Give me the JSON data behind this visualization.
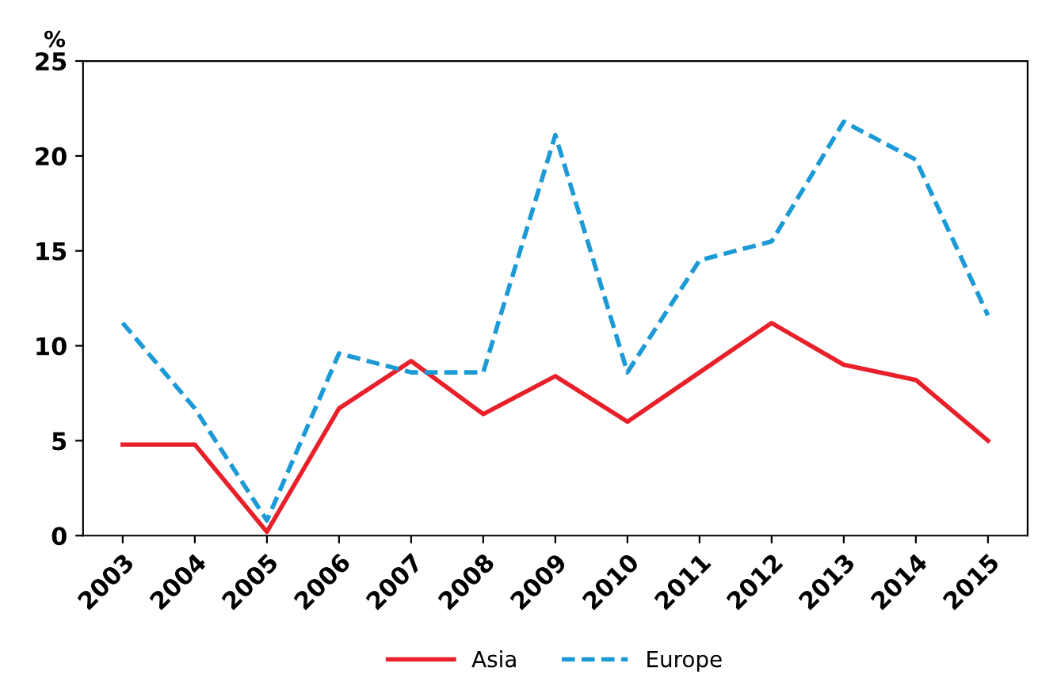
{
  "chart_data": {
    "type": "line",
    "ylabel": "%",
    "categories": [
      "2003",
      "2004",
      "2005",
      "2006",
      "2007",
      "2008",
      "2009",
      "2010",
      "2011",
      "2012",
      "2013",
      "2014",
      "2015"
    ],
    "series": [
      {
        "name": "Asia",
        "color": "#e8202a",
        "line_style": "solid",
        "values": [
          4.8,
          4.8,
          0.2,
          6.7,
          9.2,
          6.4,
          8.4,
          6.0,
          8.6,
          11.2,
          9.0,
          8.2,
          5.0
        ]
      },
      {
        "name": "Europe",
        "color": "#1c9ad6",
        "line_style": "dashed",
        "values": [
          11.2,
          6.7,
          0.8,
          9.6,
          8.6,
          8.6,
          21.1,
          8.6,
          14.5,
          15.5,
          21.8,
          19.8,
          11.6
        ]
      }
    ],
    "ylim": [
      0,
      25
    ],
    "yticks": [
      0,
      5,
      10,
      15,
      20,
      25
    ],
    "grid": false,
    "legend": "bottom",
    "marker": "none"
  }
}
